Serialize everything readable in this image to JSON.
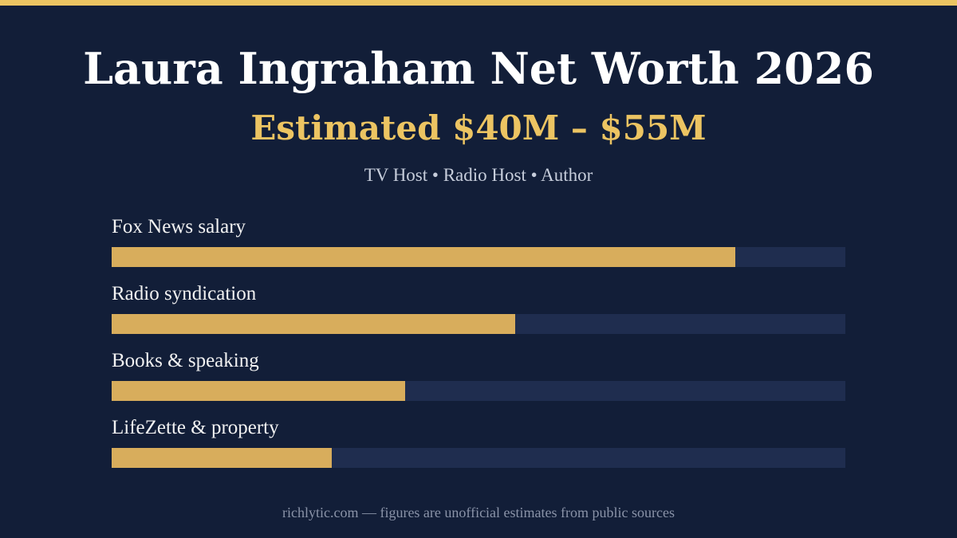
{
  "header": {
    "title": "Laura Ingraham Net Worth 2026",
    "subtitle": "Estimated $40M – $55M",
    "tagline": "TV Host • Radio Host • Author"
  },
  "colors": {
    "background": "#121e38",
    "accent": "#ecc462",
    "bar_fill": "#d8ad5c",
    "bar_track": "#1f2d4f"
  },
  "chart_data": {
    "type": "bar",
    "orientation": "horizontal",
    "categories": [
      "Fox News salary",
      "Radio syndication",
      "Books & speaking",
      "LifeZette & property"
    ],
    "values": [
      0.85,
      0.55,
      0.4,
      0.3
    ],
    "value_unit": "fraction of bar length",
    "xlim": [
      0,
      1
    ],
    "grid": false,
    "legend": false
  },
  "footer": {
    "note": "richlytic.com — figures are unofficial estimates from public sources"
  }
}
